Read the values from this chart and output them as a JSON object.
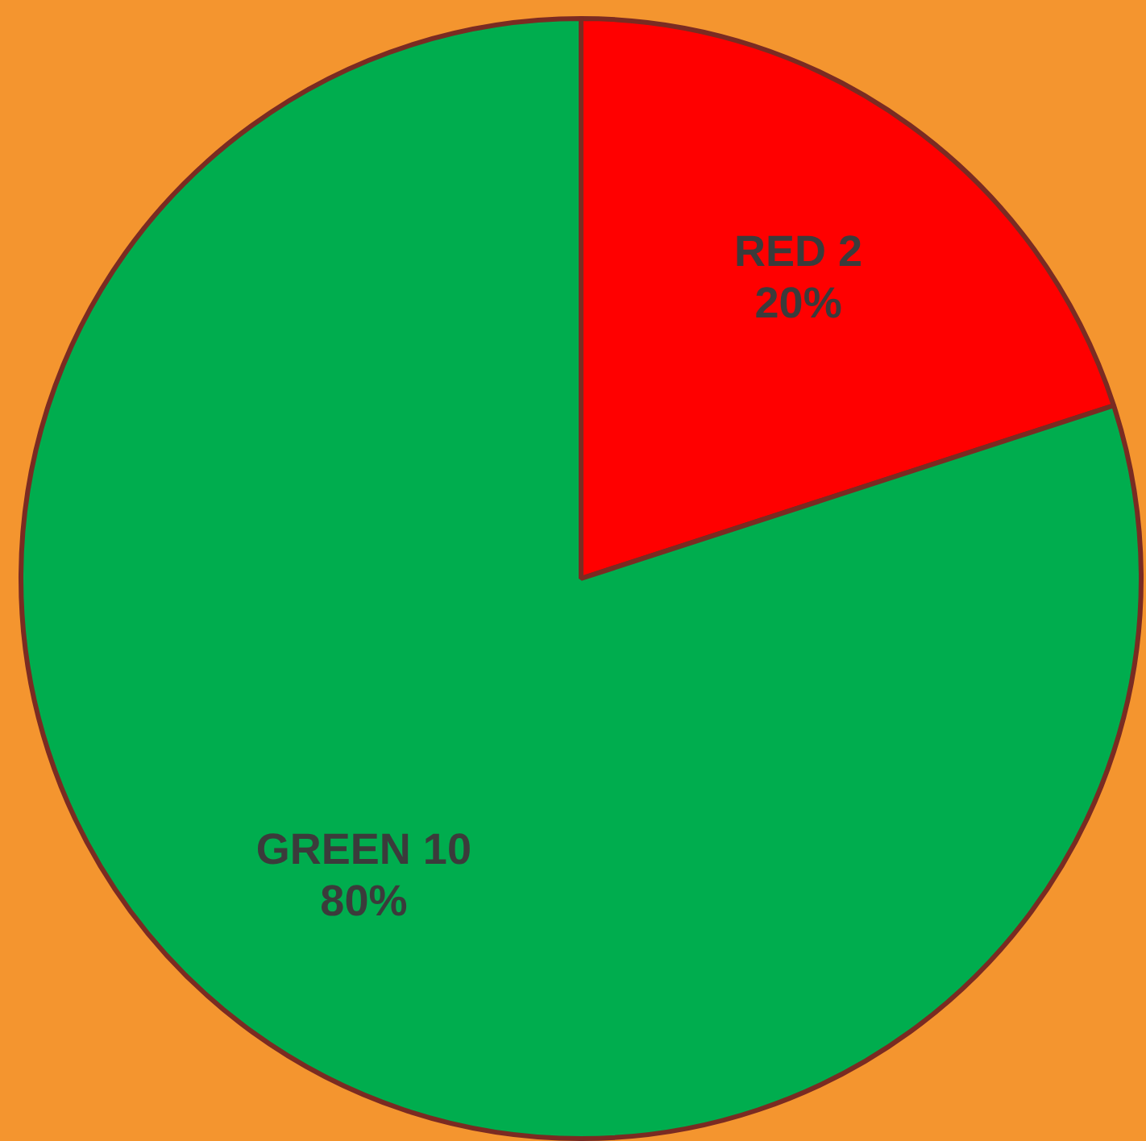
{
  "chart_data": {
    "type": "pie",
    "categories": [
      "RED 2",
      "GREEN 10"
    ],
    "values": [
      20,
      80
    ],
    "colors": [
      "#ff0000",
      "#00ad4e"
    ],
    "value_labels": [
      "20%",
      "80%"
    ],
    "legend": false
  }
}
